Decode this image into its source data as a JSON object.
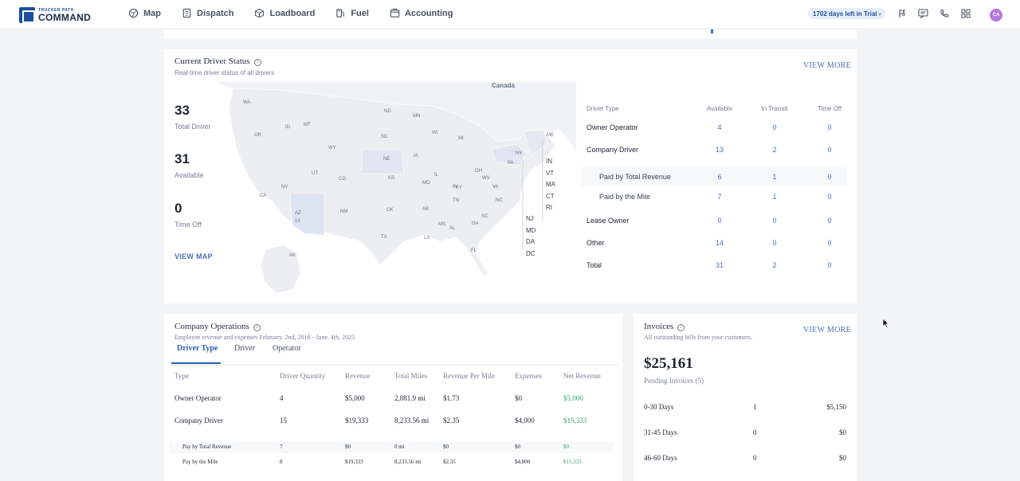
{
  "brand": {
    "line1": "TRUCKER PATH",
    "line2": "COMMAND"
  },
  "nav": [
    {
      "label": "Map",
      "icon": "map-icon"
    },
    {
      "label": "Dispatch",
      "icon": "dispatch-icon"
    },
    {
      "label": "Loadboard",
      "icon": "loadboard-icon"
    },
    {
      "label": "Fuel",
      "icon": "fuel-icon"
    },
    {
      "label": "Accounting",
      "icon": "accounting-icon"
    }
  ],
  "trial": "1702 days left in Trial",
  "avatar": "CA",
  "colors": {
    "accent": "#2b5fb3",
    "link": "#4a6fb5",
    "positive": "#34a36b",
    "avatar": "#b478e0"
  },
  "driver_status": {
    "title": "Current Driver Status",
    "subtitle": "Real-time driver status of all drivers",
    "view_more": "VIEW MORE",
    "view_map": "VIEW MAP",
    "stats": [
      {
        "value": "33",
        "label": "Total Driver"
      },
      {
        "value": "31",
        "label": "Available"
      },
      {
        "value": "0",
        "label": "Time Off"
      }
    ],
    "map": {
      "country_label": "Canada",
      "states": [
        "WA",
        "MT",
        "ND",
        "MN",
        "OR",
        "ID",
        "WY",
        "SD",
        "WI",
        "MI",
        "NE",
        "IA",
        "NV",
        "UT",
        "CO",
        "KS",
        "IL",
        "IN",
        "OH",
        "PA",
        "NY",
        "ME",
        "CA",
        "AZ",
        "NM",
        "OK",
        "MO",
        "KY",
        "WV",
        "VA",
        "AR",
        "TN",
        "NC",
        "SC",
        "TX",
        "LA",
        "MS",
        "AL",
        "GA",
        "FL",
        "AK"
      ],
      "az_count": "14",
      "east_labels": [
        "IN",
        "VT",
        "MA",
        "CT",
        "RI"
      ],
      "east_labels_2": [
        "NJ",
        "MD",
        "DA",
        "DC"
      ]
    },
    "table": {
      "headers": [
        "Driver Type",
        "Available",
        "In Transit",
        "Time Off"
      ],
      "rows": [
        {
          "type": "Owner Operator",
          "available": "4",
          "transit": "0",
          "off": "0"
        },
        {
          "type": "Company Driver",
          "available": "13",
          "transit": "2",
          "off": "0"
        },
        {
          "type": "Paid by Total Revenue",
          "available": "6",
          "transit": "1",
          "off": "0"
        },
        {
          "type": "Paid by the Mile",
          "available": "7",
          "transit": "1",
          "off": "0"
        },
        {
          "type": "Lease Owner",
          "available": "0",
          "transit": "0",
          "off": "0"
        },
        {
          "type": "Other",
          "available": "14",
          "transit": "0",
          "off": "0"
        },
        {
          "type": "Total",
          "available": "31",
          "transit": "2",
          "off": "0"
        }
      ]
    }
  },
  "operations": {
    "title": "Company Operations",
    "subtitle": "Employee revenue and expenses February. 2nd, 2016 - June. 4th, 2025",
    "tabs": [
      "Driver Type",
      "Driver",
      "Operator"
    ],
    "headers": [
      "Type",
      "Driver Quantity",
      "Revenue",
      "Total Miles",
      "Revenue Per Mile",
      "Expenses",
      "Net Revenue"
    ],
    "rows": [
      {
        "type": "Owner Operator",
        "qty": "4",
        "revenue": "$5,000",
        "miles": "2,881.9 mi",
        "rpm": "$1.73",
        "expenses": "$0",
        "net": "$5,000"
      },
      {
        "type": "Company Driver",
        "qty": "15",
        "revenue": "$19,333",
        "miles": "8,233.56 mi",
        "rpm": "$2.35",
        "expenses": "$4,000",
        "net": "$15,333"
      },
      {
        "type": "Pay by Total Revenue",
        "qty": "7",
        "revenue": "$0",
        "miles": "0 mi",
        "rpm": "$0",
        "expenses": "$0",
        "net": "$0"
      },
      {
        "type": "Pay by the Mile",
        "qty": "8",
        "revenue": "$19,333",
        "miles": "8,233.56 mi",
        "rpm": "$2.35",
        "expenses": "$4,000",
        "net": "$15,333"
      }
    ]
  },
  "invoices": {
    "title": "Invoices",
    "subtitle": "All outstanding bills from your customers.",
    "view_more": "VIEW MORE",
    "total": "$25,161",
    "pending": "Pending Invoices (5)",
    "rows": [
      {
        "range": "0-30 Days",
        "count": "1",
        "amount": "$5,150"
      },
      {
        "range": "31-45 Days",
        "count": "0",
        "amount": "$0"
      },
      {
        "range": "46-60 Days",
        "count": "0",
        "amount": "$0"
      }
    ]
  }
}
